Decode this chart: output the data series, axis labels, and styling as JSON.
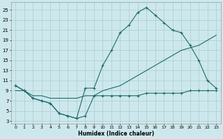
{
  "xlabel": "Humidex (Indice chaleur)",
  "bg_color": "#cde8ec",
  "grid_color": "#aaccd0",
  "line_color": "#1a6b6b",
  "xlim": [
    -0.5,
    23.5
  ],
  "ylim": [
    2.5,
    26.5
  ],
  "xticks": [
    0,
    1,
    2,
    3,
    4,
    5,
    6,
    7,
    8,
    9,
    10,
    11,
    12,
    13,
    14,
    15,
    16,
    17,
    18,
    19,
    20,
    21,
    22,
    23
  ],
  "yticks": [
    3,
    5,
    7,
    9,
    11,
    13,
    15,
    17,
    19,
    21,
    23,
    25
  ],
  "line1_x": [
    0,
    1,
    2,
    3,
    4,
    5,
    6,
    7,
    8,
    9,
    10,
    11,
    12,
    13,
    14,
    15,
    16,
    17,
    18,
    19,
    20,
    21,
    22,
    23
  ],
  "line1_y": [
    10,
    9,
    7.5,
    7,
    6.5,
    4.5,
    4,
    3.5,
    9.5,
    9.5,
    14,
    17,
    20.5,
    22,
    24.5,
    25.5,
    24,
    22.5,
    21,
    20.5,
    18,
    15,
    11,
    9.5
  ],
  "line2_x": [
    0,
    1,
    2,
    3,
    4,
    5,
    6,
    7,
    8,
    9,
    10,
    11,
    12,
    13,
    14,
    15,
    16,
    17,
    18,
    19,
    20,
    21,
    22,
    23
  ],
  "line2_y": [
    9,
    9,
    8,
    8,
    7.5,
    7.5,
    7.5,
    7.5,
    8,
    8,
    9,
    9.5,
    10,
    11,
    12,
    13,
    14,
    15,
    16,
    17,
    17.5,
    18,
    19,
    20
  ],
  "line3_x": [
    0,
    1,
    2,
    3,
    4,
    5,
    6,
    7,
    8,
    9,
    10,
    11,
    12,
    13,
    14,
    15,
    16,
    17,
    18,
    19,
    20,
    21,
    22,
    23
  ],
  "line3_y": [
    10,
    9,
    7.5,
    7,
    6.5,
    4.5,
    4,
    3.5,
    4,
    8,
    8,
    8,
    8,
    8,
    8,
    8.5,
    8.5,
    8.5,
    8.5,
    8.5,
    9,
    9,
    9,
    9
  ]
}
